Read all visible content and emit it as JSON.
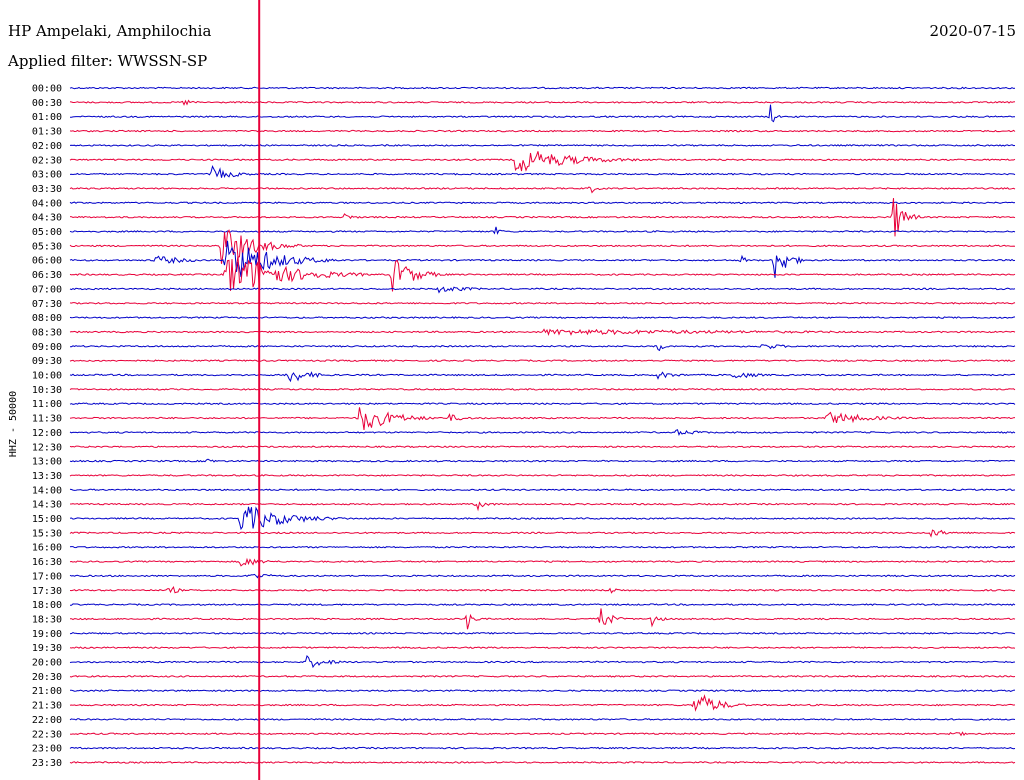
{
  "header": {
    "station": "HP Ampelaki, Amphilochia",
    "date": "2020-07-15",
    "filter": "Applied filter: WWSSN-SP",
    "channel_label": "HHZ - 50000"
  },
  "colors": {
    "trace_a": "#0000c8",
    "trace_b": "#e8003a",
    "marker": "#e8003a",
    "text": "#000000"
  },
  "chart_data": {
    "type": "line",
    "title": "",
    "xlabel": "",
    "ylabel": "HHZ - 50000",
    "minutes_per_line": 30,
    "time_marker_fraction": 0.2,
    "rows": [
      {
        "label": "00:00",
        "events": []
      },
      {
        "label": "00:30",
        "events": [
          {
            "pos": 0.12,
            "amp": 4,
            "dur": 0.01
          }
        ]
      },
      {
        "label": "01:00",
        "events": [
          {
            "pos": 0.74,
            "amp": 14,
            "dur": 0.004
          }
        ]
      },
      {
        "label": "01:30",
        "events": []
      },
      {
        "label": "02:00",
        "events": []
      },
      {
        "label": "02:30",
        "events": [
          {
            "pos": 0.47,
            "amp": 14,
            "dur": 0.05
          }
        ]
      },
      {
        "label": "03:00",
        "events": [
          {
            "pos": 0.15,
            "amp": 8,
            "dur": 0.02
          }
        ]
      },
      {
        "label": "03:30",
        "events": [
          {
            "pos": 0.55,
            "amp": 6,
            "dur": 0.006
          }
        ]
      },
      {
        "label": "04:00",
        "events": []
      },
      {
        "label": "04:30",
        "events": [
          {
            "pos": 0.87,
            "amp": 26,
            "dur": 0.01
          },
          {
            "pos": 0.29,
            "amp": 4,
            "dur": 0.01
          }
        ]
      },
      {
        "label": "05:00",
        "events": [
          {
            "pos": 0.45,
            "amp": 6,
            "dur": 0.005
          }
        ]
      },
      {
        "label": "05:30",
        "events": [
          {
            "pos": 0.16,
            "amp": 22,
            "dur": 0.03
          }
        ]
      },
      {
        "label": "06:00",
        "events": [
          {
            "pos": 0.165,
            "amp": 26,
            "dur": 0.04
          },
          {
            "pos": 0.745,
            "amp": 22,
            "dur": 0.012
          },
          {
            "pos": 0.09,
            "amp": 5,
            "dur": 0.03
          },
          {
            "pos": 0.71,
            "amp": 6,
            "dur": 0.004
          }
        ]
      },
      {
        "label": "06:30",
        "events": [
          {
            "pos": 0.165,
            "amp": 26,
            "dur": 0.05
          },
          {
            "pos": 0.34,
            "amp": 20,
            "dur": 0.02
          }
        ]
      },
      {
        "label": "07:00",
        "events": [
          {
            "pos": 0.39,
            "amp": 4,
            "dur": 0.03
          }
        ]
      },
      {
        "label": "07:30",
        "events": []
      },
      {
        "label": "08:00",
        "events": []
      },
      {
        "label": "08:30",
        "events": [
          {
            "pos": 0.5,
            "amp": 3,
            "dur": 0.25
          }
        ]
      },
      {
        "label": "09:00",
        "events": [
          {
            "pos": 0.62,
            "amp": 7,
            "dur": 0.006
          },
          {
            "pos": 0.73,
            "amp": 4,
            "dur": 0.02
          }
        ]
      },
      {
        "label": "09:30",
        "events": []
      },
      {
        "label": "10:00",
        "events": [
          {
            "pos": 0.23,
            "amp": 9,
            "dur": 0.02
          },
          {
            "pos": 0.7,
            "amp": 5,
            "dur": 0.02
          },
          {
            "pos": 0.62,
            "amp": 4,
            "dur": 0.02
          }
        ]
      },
      {
        "label": "10:30",
        "events": []
      },
      {
        "label": "11:00",
        "events": []
      },
      {
        "label": "11:30",
        "events": [
          {
            "pos": 0.305,
            "amp": 16,
            "dur": 0.03
          },
          {
            "pos": 0.8,
            "amp": 7,
            "dur": 0.04
          },
          {
            "pos": 0.4,
            "amp": 4,
            "dur": 0.02
          }
        ]
      },
      {
        "label": "12:00",
        "events": [
          {
            "pos": 0.64,
            "amp": 3,
            "dur": 0.03
          }
        ]
      },
      {
        "label": "12:30",
        "events": []
      },
      {
        "label": "13:00",
        "events": [
          {
            "pos": 0.145,
            "amp": 8,
            "dur": 0.004
          }
        ]
      },
      {
        "label": "13:30",
        "events": []
      },
      {
        "label": "14:00",
        "events": []
      },
      {
        "label": "14:30",
        "events": [
          {
            "pos": 0.43,
            "amp": 6,
            "dur": 0.01
          }
        ]
      },
      {
        "label": "15:00",
        "events": [
          {
            "pos": 0.18,
            "amp": 16,
            "dur": 0.04
          }
        ]
      },
      {
        "label": "15:30",
        "events": [
          {
            "pos": 0.91,
            "amp": 4,
            "dur": 0.02
          }
        ]
      },
      {
        "label": "16:00",
        "events": []
      },
      {
        "label": "16:30",
        "events": [
          {
            "pos": 0.18,
            "amp": 6,
            "dur": 0.02
          }
        ]
      },
      {
        "label": "17:00",
        "events": [
          {
            "pos": 0.19,
            "amp": 4,
            "dur": 0.02
          }
        ]
      },
      {
        "label": "17:30",
        "events": [
          {
            "pos": 0.105,
            "amp": 6,
            "dur": 0.008
          },
          {
            "pos": 0.57,
            "amp": 4,
            "dur": 0.01
          }
        ]
      },
      {
        "label": "18:00",
        "events": []
      },
      {
        "label": "18:30",
        "events": [
          {
            "pos": 0.42,
            "amp": 12,
            "dur": 0.006
          },
          {
            "pos": 0.56,
            "amp": 14,
            "dur": 0.01
          },
          {
            "pos": 0.615,
            "amp": 12,
            "dur": 0.006
          }
        ]
      },
      {
        "label": "19:00",
        "events": []
      },
      {
        "label": "19:30",
        "events": []
      },
      {
        "label": "20:00",
        "events": [
          {
            "pos": 0.25,
            "amp": 7,
            "dur": 0.02
          }
        ]
      },
      {
        "label": "20:30",
        "events": []
      },
      {
        "label": "21:00",
        "events": []
      },
      {
        "label": "21:30",
        "events": [
          {
            "pos": 0.66,
            "amp": 16,
            "dur": 0.02
          }
        ]
      },
      {
        "label": "22:00",
        "events": []
      },
      {
        "label": "22:30",
        "events": [
          {
            "pos": 0.93,
            "amp": 3,
            "dur": 0.02
          }
        ]
      },
      {
        "label": "23:00",
        "events": []
      },
      {
        "label": "23:30",
        "events": []
      }
    ]
  }
}
